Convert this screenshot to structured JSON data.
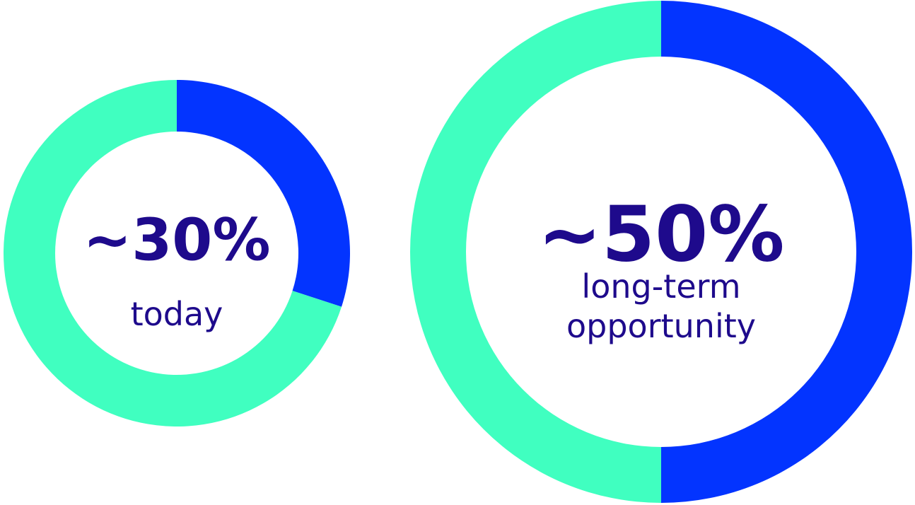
{
  "colors": {
    "filled": "#0334FF",
    "remaining": "#40FFC0",
    "text": "#1E0A8C",
    "background": "#FFFFFF"
  },
  "chart_data": [
    {
      "type": "pie",
      "style": "donut",
      "categories": [
        "share",
        "rest"
      ],
      "values": [
        30,
        70
      ],
      "value_label": "~30%",
      "caption": [
        "today"
      ]
    },
    {
      "type": "pie",
      "style": "donut",
      "categories": [
        "share",
        "rest"
      ],
      "values": [
        50,
        50
      ],
      "value_label": "~50%",
      "caption": [
        "long-term",
        "opportunity"
      ]
    }
  ]
}
